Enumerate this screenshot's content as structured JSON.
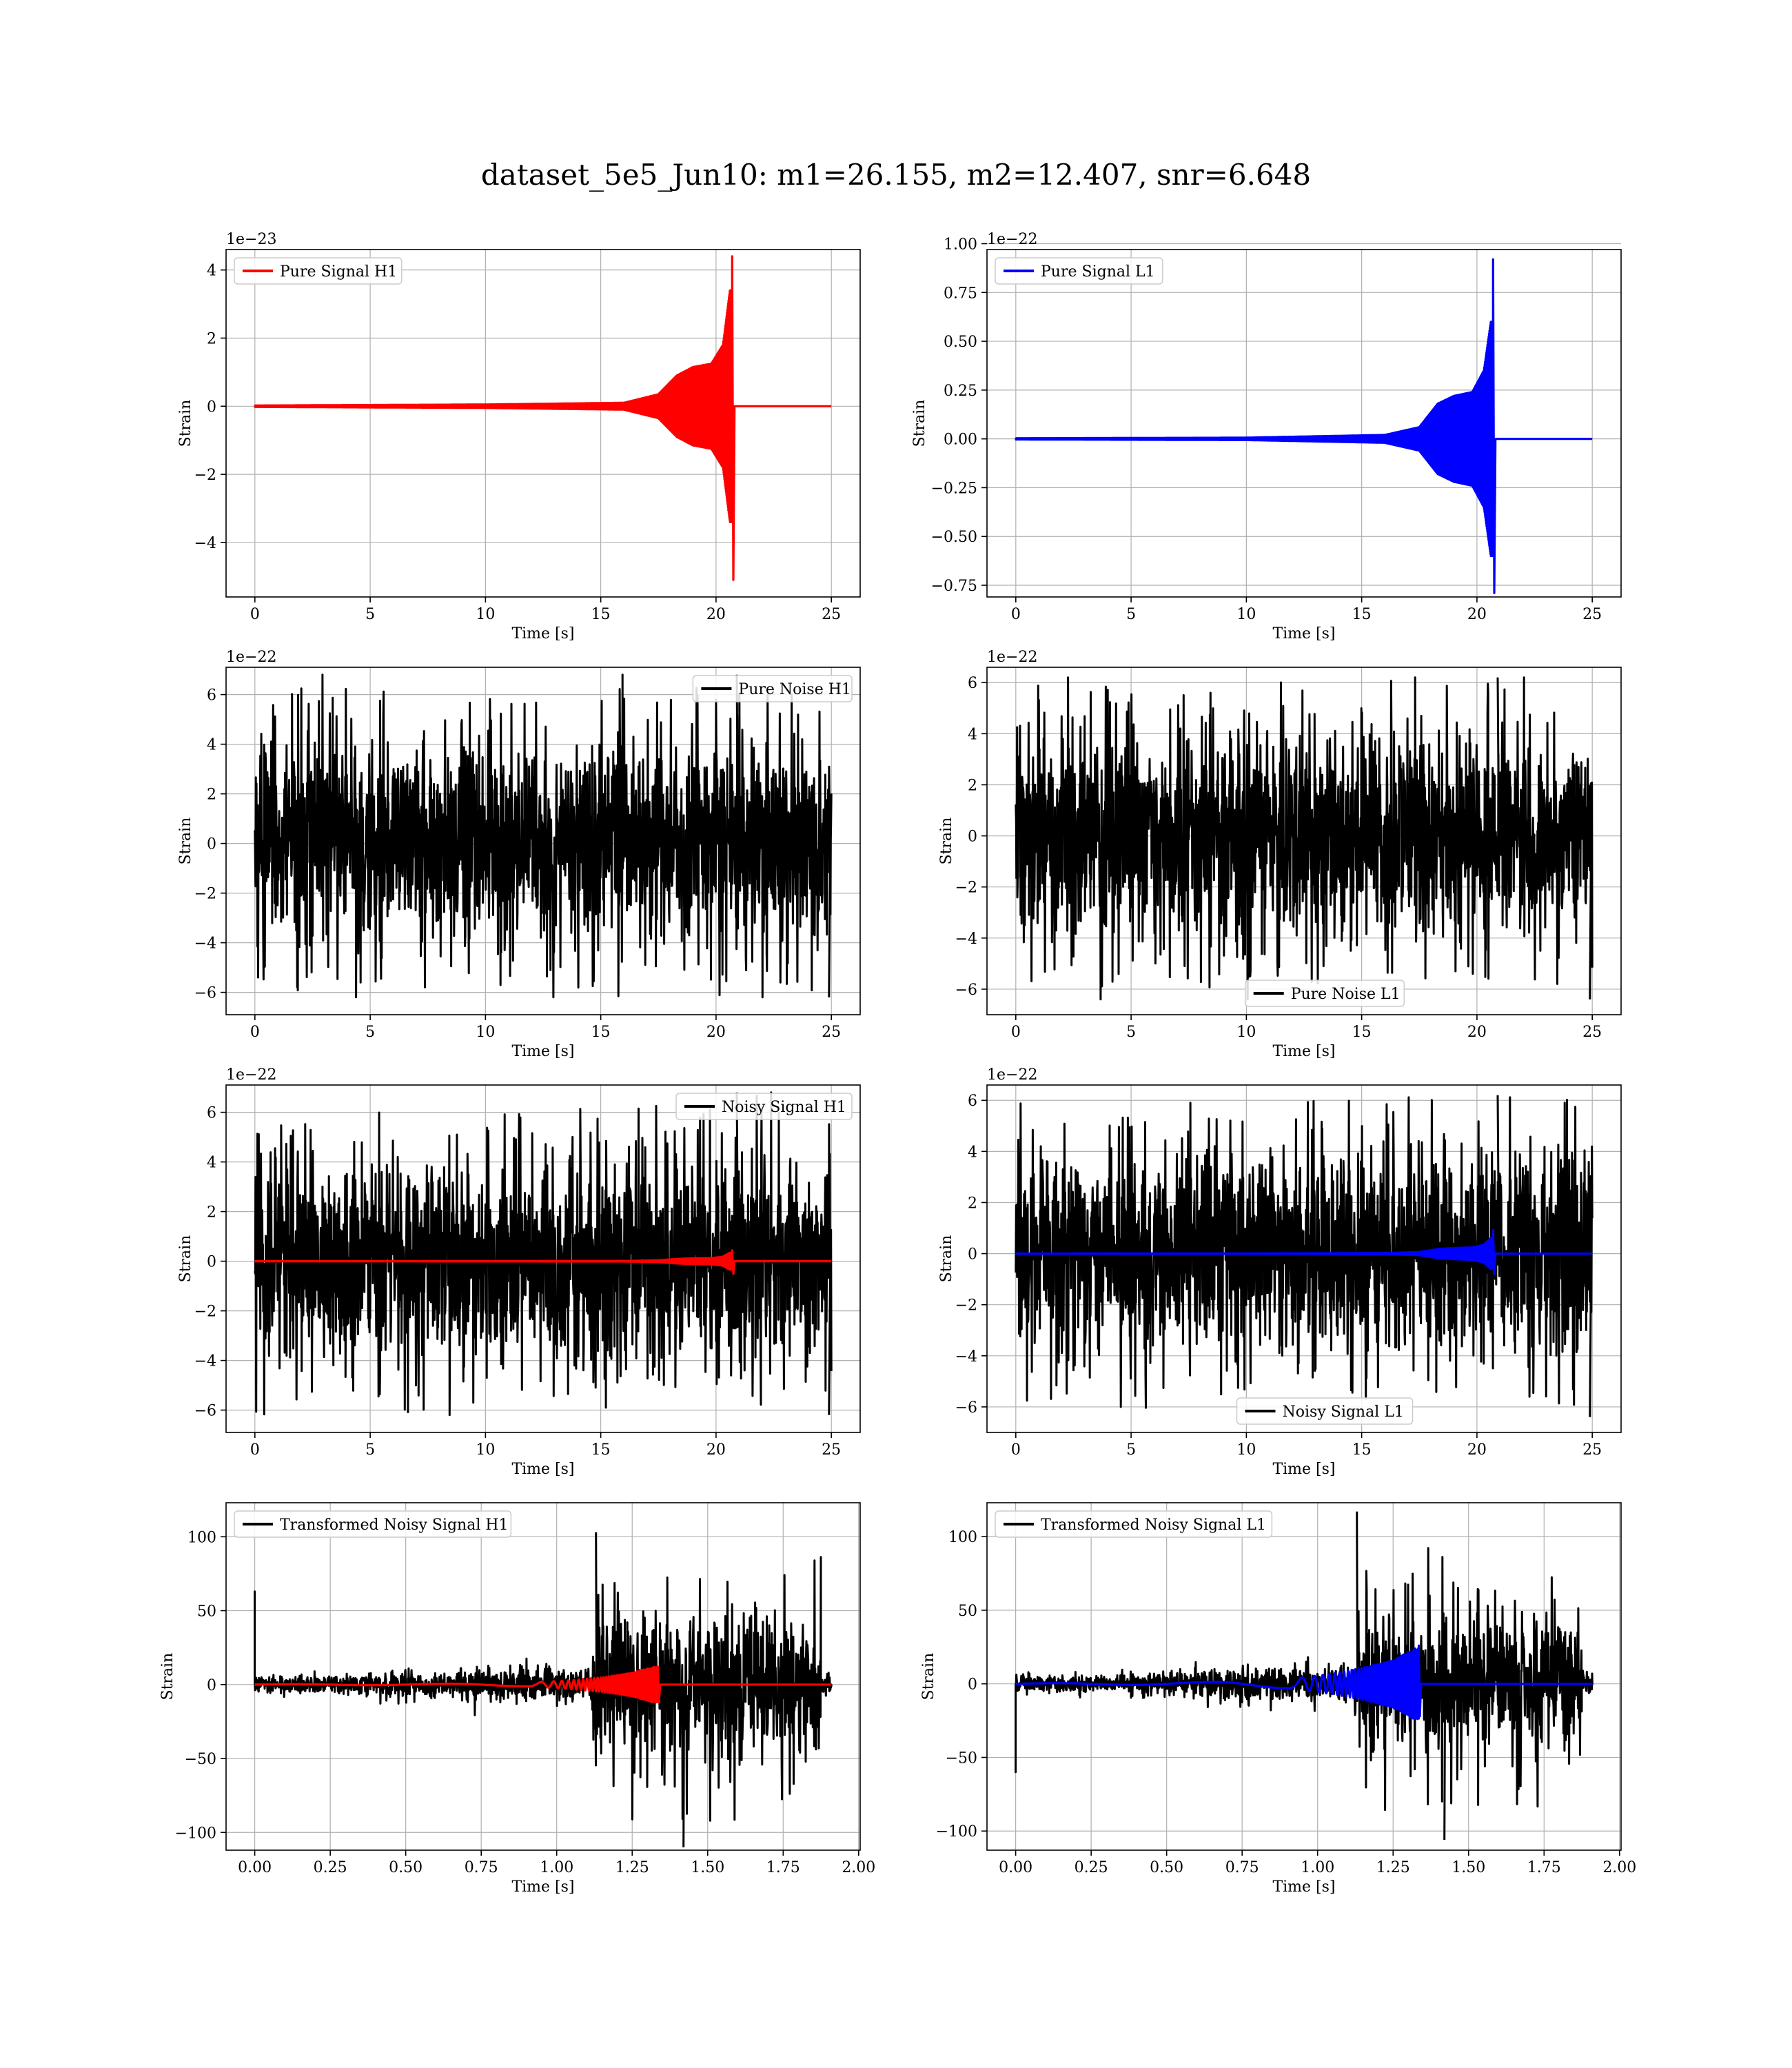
{
  "figure": {
    "title": "dataset_5e5_Jun10: m1=26.155, m2=12.407, snr=6.648"
  },
  "colors": {
    "h1": "#ff0000",
    "l1": "#0000ff",
    "noise": "#000000",
    "grid": "#b0b0b0"
  },
  "chart_data": [
    {
      "type": "line",
      "legend": "Pure Signal H1",
      "legend_placement": "upper-left",
      "xlabel": "Time [s]",
      "ylabel": "Strain",
      "offset_text": "1e−23",
      "xlim": [
        -1.25,
        26.25
      ],
      "ylim": [
        -5.6,
        4.6
      ],
      "xticks": [
        0,
        5,
        10,
        15,
        20,
        25
      ],
      "xtick_labels": [
        "0",
        "5",
        "10",
        "15",
        "20",
        "25"
      ],
      "yticks": [
        -4,
        -2,
        0,
        2,
        4
      ],
      "ytick_labels": [
        "−4",
        "−2",
        "0",
        "2",
        "4"
      ],
      "grid": true,
      "series": [
        {
          "color": "#ff0000",
          "kind": "chirp",
          "x_start": 0,
          "x_end": 25,
          "x_merge": 20.7,
          "envelope": [
            [
              0,
              0.02
            ],
            [
              10,
              0.05
            ],
            [
              16,
              0.1
            ],
            [
              17.5,
              0.35
            ],
            [
              18.3,
              0.9
            ],
            [
              19.0,
              1.15
            ],
            [
              19.8,
              1.25
            ],
            [
              20.3,
              1.8
            ],
            [
              20.6,
              3.4
            ]
          ],
          "peak_pos": 4.4,
          "peak_neg": -5.1
        }
      ]
    },
    {
      "type": "line",
      "legend": "Pure Signal L1",
      "legend_placement": "upper-left",
      "xlabel": "Time [s]",
      "ylabel": "Strain",
      "offset_text": "1e−22",
      "xlim": [
        -1.25,
        26.25
      ],
      "ylim": [
        -0.81,
        0.97
      ],
      "xticks": [
        0,
        5,
        10,
        15,
        20,
        25
      ],
      "xtick_labels": [
        "0",
        "5",
        "10",
        "15",
        "20",
        "25"
      ],
      "yticks": [
        -0.75,
        -0.5,
        -0.25,
        0.0,
        0.25,
        0.5,
        0.75,
        1.0
      ],
      "ytick_labels": [
        "−0.75",
        "−0.50",
        "−0.25",
        "0.00",
        "0.25",
        "0.50",
        "0.75",
        "1.00"
      ],
      "grid": true,
      "series": [
        {
          "color": "#0000ff",
          "kind": "chirp",
          "x_start": 0,
          "x_end": 25,
          "x_merge": 20.7,
          "envelope": [
            [
              0,
              0.003
            ],
            [
              10,
              0.006
            ],
            [
              16,
              0.02
            ],
            [
              17.5,
              0.06
            ],
            [
              18.3,
              0.18
            ],
            [
              19.0,
              0.22
            ],
            [
              19.8,
              0.24
            ],
            [
              20.3,
              0.35
            ],
            [
              20.6,
              0.6
            ]
          ],
          "peak_pos": 0.92,
          "peak_neg": -0.79
        }
      ]
    },
    {
      "type": "line",
      "legend": "Pure Noise H1",
      "legend_placement": "upper-right",
      "xlabel": "Time [s]",
      "ylabel": "Strain",
      "offset_text": "1e−22",
      "xlim": [
        -1.25,
        26.25
      ],
      "ylim": [
        -6.9,
        7.1
      ],
      "xticks": [
        0,
        5,
        10,
        15,
        20,
        25
      ],
      "xtick_labels": [
        "0",
        "5",
        "10",
        "15",
        "20",
        "25"
      ],
      "yticks": [
        -6,
        -4,
        -2,
        0,
        2,
        4,
        6
      ],
      "ytick_labels": [
        "−6",
        "−4",
        "−2",
        "0",
        "2",
        "4",
        "6"
      ],
      "grid": true,
      "series": [
        {
          "color": "#000000",
          "kind": "noise",
          "x_start": 0,
          "x_end": 25,
          "amplitude": 3.6,
          "max_pos": 6.8,
          "max_neg": -6.2
        }
      ]
    },
    {
      "type": "line",
      "legend": "Pure Noise L1",
      "legend_placement": "lower-center",
      "xlabel": "Time [s]",
      "ylabel": "Strain",
      "offset_text": "1e−22",
      "xlim": [
        -1.25,
        26.25
      ],
      "ylim": [
        -7.0,
        6.6
      ],
      "xticks": [
        0,
        5,
        10,
        15,
        20,
        25
      ],
      "xtick_labels": [
        "0",
        "5",
        "10",
        "15",
        "20",
        "25"
      ],
      "yticks": [
        -6,
        -4,
        -2,
        0,
        2,
        4,
        6
      ],
      "ytick_labels": [
        "−6",
        "−4",
        "−2",
        "0",
        "2",
        "4",
        "6"
      ],
      "grid": true,
      "series": [
        {
          "color": "#000000",
          "kind": "noise",
          "x_start": 0,
          "x_end": 25,
          "amplitude": 3.5,
          "max_pos": 6.2,
          "max_neg": -6.4
        }
      ]
    },
    {
      "type": "line",
      "legend": "Noisy Signal H1",
      "legend_placement": "upper-right",
      "xlabel": "Time [s]",
      "ylabel": "Strain",
      "offset_text": "1e−22",
      "xlim": [
        -1.25,
        26.25
      ],
      "ylim": [
        -6.9,
        7.1
      ],
      "xticks": [
        0,
        5,
        10,
        15,
        20,
        25
      ],
      "xtick_labels": [
        "0",
        "5",
        "10",
        "15",
        "20",
        "25"
      ],
      "yticks": [
        -6,
        -4,
        -2,
        0,
        2,
        4,
        6
      ],
      "ytick_labels": [
        "−6",
        "−4",
        "−2",
        "0",
        "2",
        "4",
        "6"
      ],
      "grid": true,
      "series": [
        {
          "color": "#000000",
          "kind": "noise",
          "x_start": 0,
          "x_end": 25,
          "amplitude": 3.6,
          "max_pos": 6.8,
          "max_neg": -6.2
        },
        {
          "color": "#ff0000",
          "kind": "chirp",
          "x_start": 0,
          "x_end": 25,
          "x_merge": 20.7,
          "envelope": [
            [
              0,
              0.002
            ],
            [
              10,
              0.005
            ],
            [
              16,
              0.01
            ],
            [
              17.5,
              0.035
            ],
            [
              18.3,
              0.09
            ],
            [
              19.0,
              0.115
            ],
            [
              19.8,
              0.125
            ],
            [
              20.3,
              0.18
            ],
            [
              20.6,
              0.34
            ]
          ],
          "peak_pos": 0.44,
          "peak_neg": -0.51
        }
      ]
    },
    {
      "type": "line",
      "legend": "Noisy Signal L1",
      "legend_placement": "lower-center",
      "xlabel": "Time [s]",
      "ylabel": "Strain",
      "offset_text": "1e−22",
      "xlim": [
        -1.25,
        26.25
      ],
      "ylim": [
        -7.0,
        6.6
      ],
      "xticks": [
        0,
        5,
        10,
        15,
        20,
        25
      ],
      "xtick_labels": [
        "0",
        "5",
        "10",
        "15",
        "20",
        "25"
      ],
      "yticks": [
        -6,
        -4,
        -2,
        0,
        2,
        4,
        6
      ],
      "ytick_labels": [
        "−6",
        "−4",
        "−2",
        "0",
        "2",
        "4",
        "6"
      ],
      "grid": true,
      "series": [
        {
          "color": "#000000",
          "kind": "noise",
          "x_start": 0,
          "x_end": 25,
          "amplitude": 3.5,
          "max_pos": 6.2,
          "max_neg": -6.4
        },
        {
          "color": "#0000ff",
          "kind": "chirp",
          "x_start": 0,
          "x_end": 25,
          "x_merge": 20.7,
          "envelope": [
            [
              0,
              0.003
            ],
            [
              10,
              0.006
            ],
            [
              16,
              0.02
            ],
            [
              17.5,
              0.06
            ],
            [
              18.3,
              0.18
            ],
            [
              19.0,
              0.22
            ],
            [
              19.8,
              0.24
            ],
            [
              20.3,
              0.35
            ],
            [
              20.6,
              0.6
            ]
          ],
          "peak_pos": 0.92,
          "peak_neg": -0.79
        }
      ]
    },
    {
      "type": "line",
      "legend": "Transformed Noisy Signal H1",
      "legend_placement": "upper-left",
      "xlabel": "Time [s]",
      "ylabel": "Strain",
      "offset_text": "",
      "xlim": [
        -0.095,
        2.005
      ],
      "ylim": [
        -112,
        123
      ],
      "xticks": [
        0.0,
        0.25,
        0.5,
        0.75,
        1.0,
        1.25,
        1.5,
        1.75,
        2.0
      ],
      "xtick_labels": [
        "0.00",
        "0.25",
        "0.50",
        "0.75",
        "1.00",
        "1.25",
        "1.50",
        "1.75",
        "2.00"
      ],
      "yticks": [
        -100,
        -50,
        0,
        50,
        100
      ],
      "ytick_labels": [
        "−100",
        "−50",
        "0",
        "50",
        "100"
      ],
      "grid": true,
      "series": [
        {
          "color": "#000000",
          "kind": "whitened",
          "x_start": 0,
          "x_end": 1.91,
          "x_jump": 1.12,
          "x_stop": 1.875,
          "amp_early": 8,
          "amp_late": 45,
          "spike_start": 63,
          "max_pos": 103,
          "max_neg": -110
        },
        {
          "color": "#ff0000",
          "kind": "chirp",
          "x_start": 0,
          "x_end": 1.91,
          "x_merge": 1.335,
          "envelope": [
            [
              0,
              0.2
            ],
            [
              0.6,
              0.5
            ],
            [
              0.9,
              1.2
            ],
            [
              1.05,
              3
            ],
            [
              1.15,
              5
            ],
            [
              1.25,
              8
            ],
            [
              1.32,
              12
            ]
          ],
          "peak_pos": 12,
          "peak_neg": -12
        }
      ]
    },
    {
      "type": "line",
      "legend": "Transformed Noisy Signal L1",
      "legend_placement": "upper-left",
      "xlabel": "Time [s]",
      "ylabel": "Strain",
      "offset_text": "",
      "xlim": [
        -0.095,
        2.005
      ],
      "ylim": [
        -113,
        123
      ],
      "xticks": [
        0.0,
        0.25,
        0.5,
        0.75,
        1.0,
        1.25,
        1.5,
        1.75,
        2.0
      ],
      "xtick_labels": [
        "0.00",
        "0.25",
        "0.50",
        "0.75",
        "1.00",
        "1.25",
        "1.50",
        "1.75",
        "2.00"
      ],
      "yticks": [
        -100,
        -50,
        0,
        50,
        100
      ],
      "ytick_labels": [
        "−100",
        "−50",
        "0",
        "50",
        "100"
      ],
      "grid": true,
      "series": [
        {
          "color": "#000000",
          "kind": "whitened",
          "x_start": 0,
          "x_end": 1.91,
          "x_jump": 1.12,
          "x_stop": 1.875,
          "amp_early": 8,
          "amp_late": 45,
          "spike_start": -60,
          "max_pos": 117,
          "max_neg": -106
        },
        {
          "color": "#0000ff",
          "kind": "chirp",
          "x_start": 0,
          "x_end": 1.91,
          "x_merge": 1.335,
          "envelope": [
            [
              0,
              0.3
            ],
            [
              0.6,
              1
            ],
            [
              0.9,
              3
            ],
            [
              1.05,
              7
            ],
            [
              1.15,
              11
            ],
            [
              1.25,
              16
            ],
            [
              1.32,
              24
            ]
          ],
          "peak_pos": 26,
          "peak_neg": -22
        }
      ]
    }
  ]
}
